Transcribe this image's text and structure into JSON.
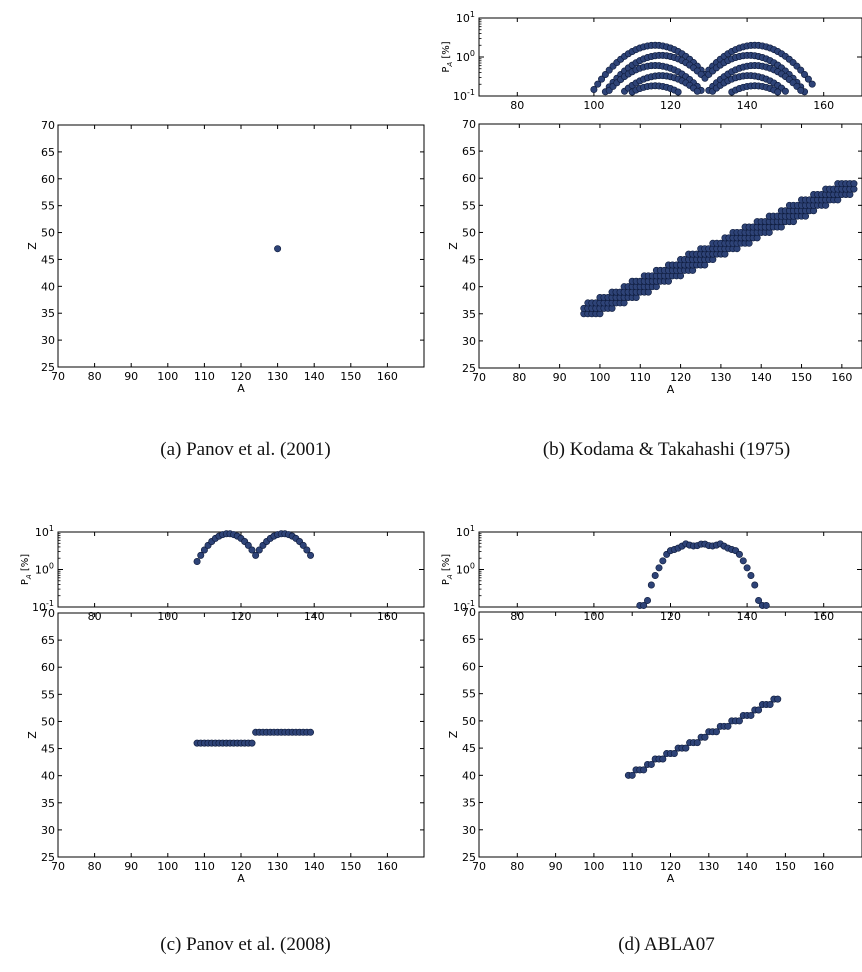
{
  "chart_data": [
    {
      "id": "a",
      "type": "scatter",
      "caption": "(a) Panov et al. (2001)",
      "has_top_panel": false,
      "colors": {
        "marker_fill": "#2e4377",
        "marker_edge": "#0d1a3a",
        "axis": "#000000"
      },
      "main": {
        "xlabel": "A",
        "ylabel": "Z",
        "xlim": [
          70,
          170
        ],
        "ylim": [
          25,
          70
        ],
        "xticks": [
          70,
          80,
          90,
          100,
          110,
          120,
          130,
          140,
          150,
          160
        ],
        "yticks": [
          25,
          30,
          35,
          40,
          45,
          50,
          55,
          60,
          65,
          70
        ],
        "points": [
          [
            130,
            47
          ]
        ]
      }
    },
    {
      "id": "b",
      "type": "scatter",
      "caption": "(b) Kodama & Takahashi (1975)",
      "has_top_panel": true,
      "colors": {
        "marker_fill": "#2e4377",
        "marker_edge": "#0d1a3a",
        "axis": "#000000"
      },
      "top": {
        "ylabel": "P",
        "ylabel_sub": "A",
        "ylabel_unit": "[%]",
        "yscale": "log",
        "ylim": [
          0.1,
          10
        ],
        "ytick_labels": [
          {
            "base": "10",
            "exp": "-1",
            "value": 0.1
          },
          {
            "base": "10",
            "exp": "0",
            "value": 1
          },
          {
            "base": "10",
            "exp": "1",
            "value": 10
          }
        ],
        "xlim": [
          70,
          170
        ],
        "xticks": [
          80,
          100,
          120,
          140,
          160
        ],
        "curve": {
          "kind": "multi_double_hump",
          "a_min": 100,
          "a_max": 157,
          "peaks": [
            116,
            142
          ],
          "peak_value": 2.0,
          "sigma": 7,
          "ridges": 5
        }
      },
      "main": {
        "xlabel": "A",
        "ylabel": "Z",
        "xlim": [
          70,
          165
        ],
        "ylim": [
          25,
          70
        ],
        "xticks": [
          70,
          80,
          90,
          100,
          110,
          120,
          130,
          140,
          150,
          160
        ],
        "yticks": [
          25,
          30,
          35,
          40,
          45,
          50,
          55,
          60,
          65,
          70
        ],
        "band": {
          "a_min": 96,
          "a_max": 163,
          "z_start": 35,
          "z_end": 59,
          "width": 2.5
        }
      }
    },
    {
      "id": "c",
      "type": "scatter",
      "caption": "(c) Panov et al. (2008)",
      "has_top_panel": true,
      "colors": {
        "marker_fill": "#2e4377",
        "marker_edge": "#0d1a3a",
        "axis": "#000000"
      },
      "top": {
        "ylabel": "P",
        "ylabel_sub": "A",
        "ylabel_unit": "[%]",
        "yscale": "log",
        "ylim": [
          0.1,
          10
        ],
        "ytick_labels": [
          {
            "base": "10",
            "exp": "-1",
            "value": 0.1
          },
          {
            "base": "10",
            "exp": "0",
            "value": 1
          },
          {
            "base": "10",
            "exp": "1",
            "value": 10
          }
        ],
        "xlim": [
          70,
          170
        ],
        "xticks": [
          80,
          100,
          120,
          140,
          160
        ],
        "curve": {
          "kind": "double_hump",
          "a_min": 108,
          "a_max": 139,
          "peaks": [
            116.5,
            131.5
          ],
          "peak_value": 9.0,
          "sigma": 4.6,
          "floor": 0.15
        }
      },
      "main": {
        "xlabel": "A",
        "ylabel": "Z",
        "xlim": [
          70,
          170
        ],
        "ylim": [
          25,
          70
        ],
        "xticks": [
          70,
          80,
          90,
          100,
          110,
          120,
          130,
          140,
          150,
          160
        ],
        "yticks": [
          25,
          30,
          35,
          40,
          45,
          50,
          55,
          60,
          65,
          70
        ],
        "segments": [
          {
            "a_min": 108,
            "a_max": 123,
            "z": 46
          },
          {
            "a_min": 124,
            "a_max": 139,
            "z": 48
          }
        ]
      }
    },
    {
      "id": "d",
      "type": "scatter",
      "caption": "(d) ABLA07",
      "has_top_panel": true,
      "colors": {
        "marker_fill": "#2e4377",
        "marker_edge": "#0d1a3a",
        "axis": "#000000"
      },
      "top": {
        "ylabel": "P",
        "ylabel_sub": "A",
        "ylabel_unit": "[%]",
        "yscale": "log",
        "ylim": [
          0.1,
          10
        ],
        "ytick_labels": [
          {
            "base": "10",
            "exp": "-1",
            "value": 0.1
          },
          {
            "base": "10",
            "exp": "0",
            "value": 1
          },
          {
            "base": "10",
            "exp": "1",
            "value": 10
          }
        ],
        "xlim": [
          70,
          170
        ],
        "xticks": [
          80,
          100,
          120,
          140,
          160
        ],
        "curve": {
          "kind": "plateau",
          "a_min": 112,
          "a_max": 145,
          "center": 128.5,
          "peak_value": 5.0,
          "halfwidth": 15
        }
      },
      "main": {
        "xlabel": "A",
        "ylabel": "Z",
        "xlim": [
          70,
          170
        ],
        "ylim": [
          25,
          70
        ],
        "xticks": [
          70,
          80,
          90,
          100,
          110,
          120,
          130,
          140,
          150,
          160
        ],
        "yticks": [
          25,
          30,
          35,
          40,
          45,
          50,
          55,
          60,
          65,
          70
        ],
        "line": {
          "a_min": 109,
          "a_max": 148,
          "z_start": 40,
          "z_end": 54
        }
      }
    }
  ]
}
